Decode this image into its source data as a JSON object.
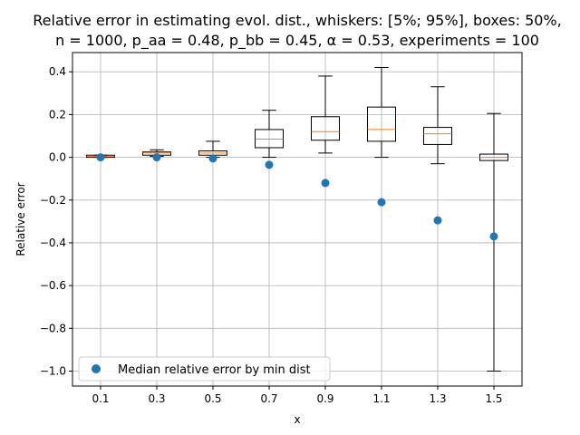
{
  "chart_data": {
    "type": "box",
    "title_line1": "Relative error in estimating evol. dist., whiskers: [5%; 95%], boxes: 50%,",
    "title_line2": "n = 1000, p_aa = 0.48, p_bb = 0.45, α = 0.53, experiments = 100",
    "xlabel": "x",
    "ylabel": "Relative error",
    "ylim": [
      -1.07,
      0.49
    ],
    "yticks": [
      -1.0,
      -0.8,
      -0.6,
      -0.4,
      -0.2,
      0.0,
      0.2,
      0.4
    ],
    "ytick_labels": [
      "−1.0",
      "−0.8",
      "−0.6",
      "−0.4",
      "−0.2",
      "0.0",
      "0.2",
      "0.4"
    ],
    "categories": [
      "0.1",
      "0.3",
      "0.5",
      "0.7",
      "0.9",
      "1.1",
      "1.3",
      "1.5"
    ],
    "grid": true,
    "legend_position": "lower-left",
    "colors": {
      "median_line": "#ff7f0e",
      "points": "#1f77b4",
      "grid": "#b0b0b0"
    },
    "boxes": [
      {
        "whisker_low": 0.0,
        "q1": 0.0,
        "median": 0.005,
        "q3": 0.01,
        "whisker_high": 0.01
      },
      {
        "whisker_low": 0.005,
        "q1": 0.01,
        "median": 0.02,
        "q3": 0.025,
        "whisker_high": 0.035
      },
      {
        "whisker_low": 0.0,
        "q1": 0.01,
        "median": 0.02,
        "q3": 0.03,
        "whisker_high": 0.075
      },
      {
        "whisker_low": 0.0,
        "q1": 0.045,
        "median": 0.085,
        "q3": 0.13,
        "whisker_high": 0.22
      },
      {
        "whisker_low": 0.02,
        "q1": 0.08,
        "median": 0.12,
        "q3": 0.19,
        "whisker_high": 0.38
      },
      {
        "whisker_low": 0.0,
        "q1": 0.075,
        "median": 0.13,
        "q3": 0.235,
        "whisker_high": 0.42
      },
      {
        "whisker_low": -0.03,
        "q1": 0.06,
        "median": 0.11,
        "q3": 0.14,
        "whisker_high": 0.33
      },
      {
        "whisker_low": -1.0,
        "q1": -0.015,
        "median": 0.0,
        "q3": 0.015,
        "whisker_high": 0.205
      }
    ],
    "series": [
      {
        "name": "Median relative error by min dist",
        "values": [
          0.0,
          0.0,
          -0.005,
          -0.035,
          -0.12,
          -0.21,
          -0.295,
          -0.37
        ]
      }
    ]
  }
}
